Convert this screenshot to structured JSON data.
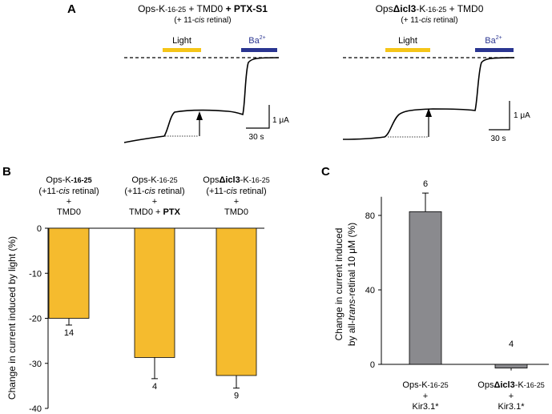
{
  "panels": {
    "A": {
      "letter": "A",
      "left": {
        "title_prefix": "Ops-K",
        "title_sub": "-16-25",
        "title_mid": " + TMD0 ",
        "title_bold": "+ PTX-S1",
        "retinal_open": "(+ 11-",
        "retinal_cis": "cis",
        "retinal_close": " retinal)",
        "light_label": "Light",
        "ba_label": "Ba",
        "ba_sup": "2+",
        "scale_y": "1 μA",
        "scale_x": "30 s"
      },
      "right": {
        "title_prefix": "Ops",
        "title_bold": "Δicl3",
        "title_k": "-K",
        "title_sub": "-16-25",
        "title_mid": " + TMD0",
        "retinal_open": "(+ 11-",
        "retinal_cis": "cis",
        "retinal_close": " retinal)",
        "light_label": "Light",
        "ba_label": "Ba",
        "ba_sup": "2+",
        "scale_y": "1 μA",
        "scale_x": "30 s"
      },
      "colors": {
        "light": "#f5c518",
        "ba": "#2a3591",
        "trace": "#000000"
      }
    },
    "B": {
      "letter": "B",
      "group_headers": [
        {
          "line1_a": "Ops-K",
          "line1_sub": "-16-25",
          "line2_open": "(+11-",
          "line2_cis": "cis",
          "line2_close": " retinal)",
          "line3": "+",
          "line4_a": "TMD0",
          "line4_bold": ""
        },
        {
          "line1_a": "Ops-K",
          "line1_sub": "-16-25",
          "line2_open": "(+11-",
          "line2_cis": "cis",
          "line2_close": " retinal)",
          "line3": "+",
          "line4_a": "TMD0 + ",
          "line4_bold": "PTX"
        },
        {
          "line1_a": "Ops",
          "line1_bold": "Δicl3",
          "line1_k": "-K",
          "line1_sub": "-16-25",
          "line2_open": "(+11-",
          "line2_cis": "cis",
          "line2_close": " retinal)",
          "line3": "+",
          "line4_a": "TMD0",
          "line4_bold": ""
        }
      ]
    },
    "C": {
      "letter": "C",
      "categories": [
        {
          "l1a": "Ops-K",
          "l1bold": "",
          "l1k": "",
          "l1sub": "-16-25",
          "l2": "+",
          "l3": "Kir3.1*"
        },
        {
          "l1a": "Ops",
          "l1bold": "Δicl3",
          "l1k": "-K",
          "l1sub": "-16-25",
          "l2": "+",
          "l3": "Kir3.1*"
        }
      ]
    }
  },
  "chart_data": [
    {
      "type": "bar",
      "panel": "B",
      "ylabel": "Change in current induced by light (%)",
      "ylim": [
        -40,
        0
      ],
      "yticks": [
        0,
        -10,
        -20,
        -30,
        -40
      ],
      "values": [
        -20,
        -28.7,
        -32.7
      ],
      "errors": [
        1.5,
        4.7,
        2.8
      ],
      "n_labels": [
        "14",
        "4",
        "9"
      ],
      "color": "#f5bb2e"
    },
    {
      "type": "bar",
      "panel": "C",
      "ylabel_line1": "Change in current induced",
      "ylabel_line2_a": "by all-",
      "ylabel_line2_italic": "trans",
      "ylabel_line2_b": "-retinal 10 μM (%)",
      "ylim": [
        0,
        90
      ],
      "yticks": [
        0,
        40,
        80
      ],
      "values": [
        82,
        -2
      ],
      "errors": [
        10,
        0
      ],
      "n_labels": [
        "6",
        "4"
      ],
      "color": "#8a8a8e"
    }
  ]
}
